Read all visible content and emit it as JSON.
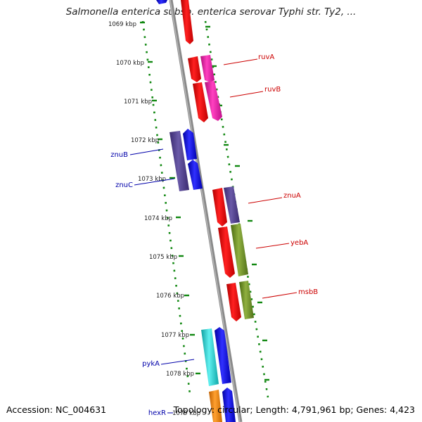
{
  "title": "Salmonella enterica subsp. enterica serovar Typhi str. Ty2, ...",
  "accession_label": "Accession: NC_004631",
  "topology_label": "Topology: circular; Length: 4,791,961 bp; Genes: 4,423",
  "ruler": {
    "unit": "kbp",
    "ticks": [
      "1069 kbp",
      "1070 kbp",
      "1071 kbp",
      "1072 kbp",
      "1073 kbp",
      "1074 kbp",
      "1075 kbp",
      "1076 kbp",
      "1077 kbp",
      "1078 kbp",
      "1079 kbp"
    ]
  },
  "genes": [
    {
      "name": "ruvA",
      "strand": "forward",
      "color": "#e0189a"
    },
    {
      "name": "ruvB",
      "strand": "forward",
      "color": "#e0189a"
    },
    {
      "name": "znuB",
      "strand": "reverse",
      "color": "#4a3a80"
    },
    {
      "name": "znuC",
      "strand": "reverse",
      "color": "#0000e0"
    },
    {
      "name": "znuA",
      "strand": "forward",
      "color": "#4a3a80"
    },
    {
      "name": "yebA",
      "strand": "forward",
      "color": "#6b8a22"
    },
    {
      "name": "msbB",
      "strand": "forward",
      "color": "#6b8a22"
    },
    {
      "name": "pykA",
      "strand": "reverse",
      "color": "#22c8c8"
    },
    {
      "name": "hexR",
      "strand": "reverse",
      "color": "#f08a10"
    }
  ],
  "colors": {
    "forward_label": "#cc0000",
    "reverse_label": "#0000aa",
    "backbone": "#888888",
    "ticks": "#118811",
    "red_gene": "#ff0000",
    "blue_gene": "#0000ee"
  }
}
